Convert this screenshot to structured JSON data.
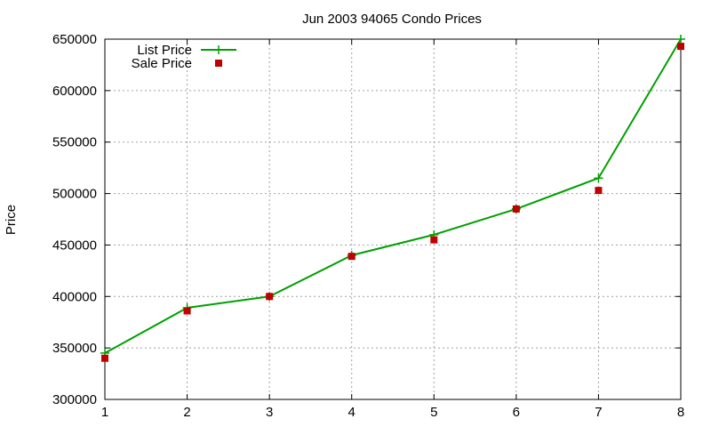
{
  "chart_data": {
    "type": "line",
    "title": "Jun 2003 94065 Condo Prices",
    "xlabel": "",
    "ylabel": "Price",
    "x": [
      1,
      2,
      3,
      4,
      5,
      6,
      7,
      8
    ],
    "xlim": [
      1,
      8
    ],
    "ylim": [
      300000,
      650000
    ],
    "xticks": [
      "1",
      "2",
      "3",
      "4",
      "5",
      "6",
      "7",
      "8"
    ],
    "yticks": [
      "300000",
      "350000",
      "400000",
      "450000",
      "500000",
      "550000",
      "600000",
      "650000"
    ],
    "grid": true,
    "legend_position": "top-left",
    "series": [
      {
        "name": "List Price",
        "style": "lines+points",
        "marker": "plus",
        "color": "#00a000",
        "values": [
          345000,
          389000,
          400000,
          440000,
          460000,
          485000,
          515000,
          650000
        ]
      },
      {
        "name": "Sale Price",
        "style": "points",
        "marker": "square",
        "color": "#c00000",
        "values": [
          340000,
          386000,
          400000,
          439000,
          455000,
          485000,
          503000,
          643000
        ]
      }
    ]
  }
}
